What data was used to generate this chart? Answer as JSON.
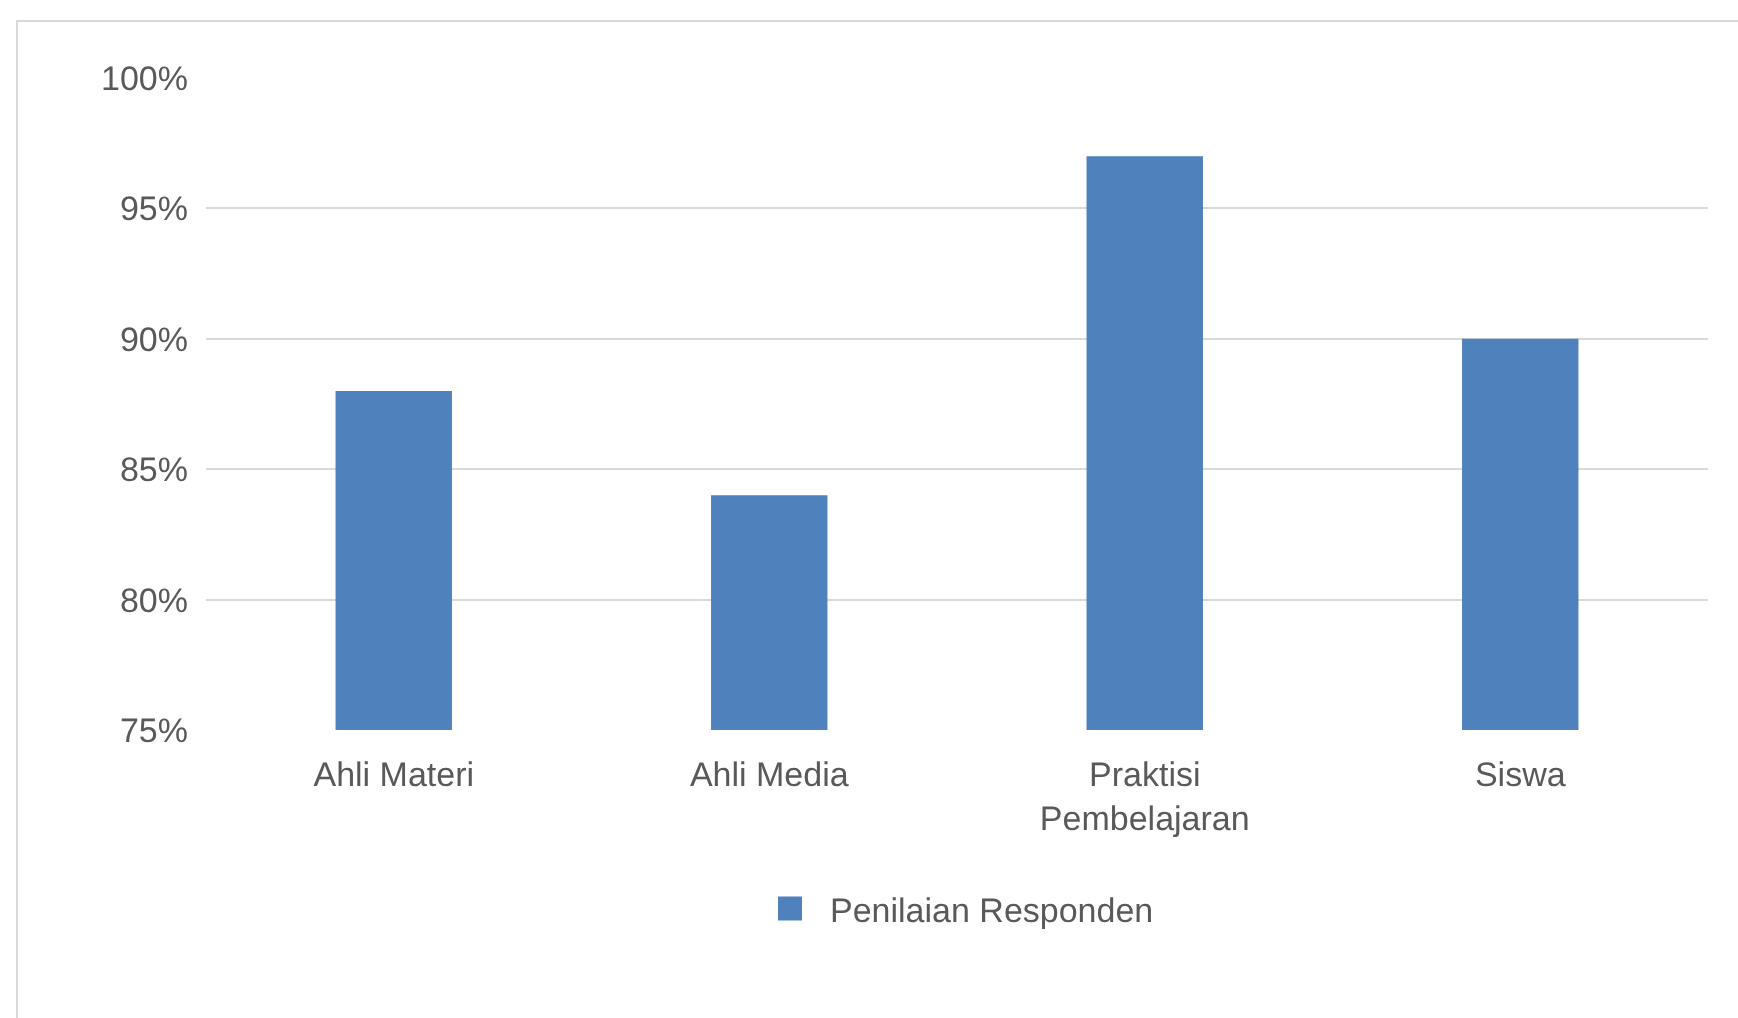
{
  "chart_data": {
    "type": "bar",
    "categories": [
      "Ahli Materi",
      "Ahli Media",
      "Praktisi Pembelajaran",
      "Siswa"
    ],
    "series": [
      {
        "name": "Penilaian Responden",
        "color": "#4f81bd",
        "values": [
          88,
          84,
          97,
          90
        ]
      }
    ],
    "ylim": [
      75,
      100
    ],
    "yticks": [
      {
        "value": 75,
        "label": "75%"
      },
      {
        "value": 80,
        "label": "80%"
      },
      {
        "value": 85,
        "label": "85%"
      },
      {
        "value": 90,
        "label": "90%"
      },
      {
        "value": 95,
        "label": "95%"
      },
      {
        "value": 100,
        "label": "100%"
      }
    ],
    "grid": "y",
    "legend": "bottom"
  }
}
